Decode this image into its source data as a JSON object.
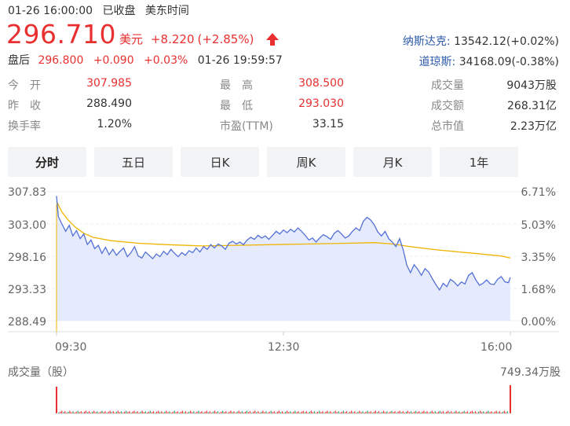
{
  "header": {
    "date_time": "01-26 16:00:00",
    "market_status": "已收盘",
    "timezone": "美东时间"
  },
  "quote": {
    "price": "296.710",
    "currency": "美元",
    "change": "+8.220",
    "change_pct": "(+2.85%)",
    "direction": "up"
  },
  "after_hours": {
    "label": "盘后",
    "price": "296.800",
    "change": "+0.090",
    "change_pct": "+0.03%",
    "time": "01-26 19:59:57"
  },
  "indices": [
    {
      "name": "纳斯达克:",
      "value": "13542.12(+0.02%)"
    },
    {
      "name": "道琼斯:",
      "value": "34168.09(-0.38%)"
    }
  ],
  "stats": {
    "open": {
      "label": "今　开",
      "value": "307.985"
    },
    "high": {
      "label": "最　高",
      "value": "308.500"
    },
    "volume": {
      "label": "成交量",
      "value": "9043万股"
    },
    "prev_close": {
      "label": "昨　收",
      "value": "288.490"
    },
    "low": {
      "label": "最　低",
      "value": "293.030"
    },
    "turnover": {
      "label": "成交额",
      "value": "268.31亿"
    },
    "turnover_rate": {
      "label": "换手率",
      "value": "1.20%"
    },
    "pe": {
      "label": "市盈(TTM)",
      "value": "33.15"
    },
    "market_cap": {
      "label": "总市值",
      "value": "2.23万亿"
    }
  },
  "tabs": [
    {
      "label": "分时",
      "active": true
    },
    {
      "label": "五日",
      "active": false
    },
    {
      "label": "日K",
      "active": false
    },
    {
      "label": "周K",
      "active": false
    },
    {
      "label": "月K",
      "active": false
    },
    {
      "label": "1年",
      "active": false
    }
  ],
  "colors": {
    "up": "#e93030",
    "index_name": "#2d5aa8",
    "price_line": "#5470d6",
    "avg_line": "#f0b400",
    "area_fill": "#dfe6fb"
  },
  "chart_data": {
    "type": "line",
    "y_left_ticks": [
      "307.83",
      "303.00",
      "298.16",
      "293.33",
      "288.49"
    ],
    "y_right_ticks": [
      "6.71%",
      "5.03%",
      "3.35%",
      "1.68%",
      "0.00%"
    ],
    "x_ticks": [
      "09:30",
      "12:30",
      "16:00"
    ],
    "ylim": [
      288.49,
      307.83
    ],
    "series": [
      {
        "values": [
          [
            0,
            307.2
          ],
          [
            1,
            304.1
          ],
          [
            3,
            303.0
          ],
          [
            5,
            301.9
          ],
          [
            7,
            302.8
          ],
          [
            9,
            301.2
          ],
          [
            11,
            302.0
          ],
          [
            13,
            300.8
          ],
          [
            15,
            301.5
          ],
          [
            17,
            299.9
          ],
          [
            19,
            300.6
          ],
          [
            21,
            299.3
          ],
          [
            23,
            299.8
          ],
          [
            25,
            298.6
          ],
          [
            27,
            299.5
          ],
          [
            29,
            298.4
          ],
          [
            31,
            299.2
          ],
          [
            33,
            298.3
          ],
          [
            35,
            298.9
          ],
          [
            37,
            299.4
          ],
          [
            39,
            298.1
          ],
          [
            41,
            298.7
          ],
          [
            43,
            299.6
          ],
          [
            45,
            298.2
          ],
          [
            47,
            297.9
          ],
          [
            49,
            298.8
          ],
          [
            51,
            298.3
          ],
          [
            53,
            297.8
          ],
          [
            55,
            298.5
          ],
          [
            57,
            298.1
          ],
          [
            59,
            298.9
          ],
          [
            61,
            298.4
          ],
          [
            63,
            299.2
          ],
          [
            65,
            298.6
          ],
          [
            67,
            298.1
          ],
          [
            69,
            298.7
          ],
          [
            71,
            298.3
          ],
          [
            73,
            299.0
          ],
          [
            75,
            298.7
          ],
          [
            77,
            299.4
          ],
          [
            79,
            298.8
          ],
          [
            81,
            299.6
          ],
          [
            83,
            299.2
          ],
          [
            85,
            299.9
          ],
          [
            87,
            299.4
          ],
          [
            89,
            300.0
          ],
          [
            91,
            299.7
          ],
          [
            93,
            299.2
          ],
          [
            95,
            300.1
          ],
          [
            97,
            300.4
          ],
          [
            99,
            300.0
          ],
          [
            101,
            300.3
          ],
          [
            103,
            299.9
          ],
          [
            105,
            300.6
          ],
          [
            107,
            301.0
          ],
          [
            109,
            300.7
          ],
          [
            111,
            301.3
          ],
          [
            113,
            300.9
          ],
          [
            115,
            301.2
          ],
          [
            117,
            300.7
          ],
          [
            119,
            301.3
          ],
          [
            121,
            301.9
          ],
          [
            123,
            301.5
          ],
          [
            125,
            302.1
          ],
          [
            127,
            301.7
          ],
          [
            129,
            302.2
          ],
          [
            131,
            301.8
          ],
          [
            133,
            302.4
          ],
          [
            135,
            301.9
          ],
          [
            137,
            301.3
          ],
          [
            139,
            300.6
          ],
          [
            141,
            300.9
          ],
          [
            143,
            300.3
          ],
          [
            145,
            300.9
          ],
          [
            147,
            301.4
          ],
          [
            149,
            301.1
          ],
          [
            151,
            300.7
          ],
          [
            153,
            301.6
          ],
          [
            155,
            302.0
          ],
          [
            157,
            301.5
          ],
          [
            159,
            300.9
          ],
          [
            161,
            301.2
          ],
          [
            163,
            301.9
          ],
          [
            165,
            302.4
          ],
          [
            167,
            302.0
          ],
          [
            169,
            303.4
          ],
          [
            171,
            304.0
          ],
          [
            173,
            303.6
          ],
          [
            175,
            302.9
          ],
          [
            177,
            301.8
          ],
          [
            179,
            301.2
          ],
          [
            181,
            301.9
          ],
          [
            183,
            300.8
          ],
          [
            185,
            300.3
          ],
          [
            187,
            299.6
          ],
          [
            189,
            300.8
          ],
          [
            191,
            299.1
          ],
          [
            193,
            296.8
          ],
          [
            195,
            295.7
          ],
          [
            197,
            296.9
          ],
          [
            199,
            296.2
          ],
          [
            201,
            295.3
          ],
          [
            203,
            296.3
          ],
          [
            205,
            295.8
          ],
          [
            207,
            294.8
          ],
          [
            209,
            293.9
          ],
          [
            211,
            293.1
          ],
          [
            213,
            294.1
          ],
          [
            215,
            293.6
          ],
          [
            217,
            294.7
          ],
          [
            219,
            294.3
          ],
          [
            221,
            293.7
          ],
          [
            223,
            294.3
          ],
          [
            225,
            294.0
          ],
          [
            227,
            295.3
          ],
          [
            229,
            295.7
          ],
          [
            231,
            294.6
          ],
          [
            233,
            293.8
          ],
          [
            235,
            294.1
          ],
          [
            237,
            294.6
          ],
          [
            239,
            294.0
          ],
          [
            241,
            293.9
          ],
          [
            243,
            294.7
          ],
          [
            245,
            295.1
          ],
          [
            247,
            294.3
          ],
          [
            249,
            294.2
          ],
          [
            250,
            295.0
          ]
        ]
      },
      {
        "values": [
          [
            0,
            306.4
          ],
          [
            3,
            304.8
          ],
          [
            6,
            303.7
          ],
          [
            10,
            302.6
          ],
          [
            15,
            301.6
          ],
          [
            20,
            301.0
          ],
          [
            30,
            300.5
          ],
          [
            45,
            300.1
          ],
          [
            60,
            299.9
          ],
          [
            80,
            299.7
          ],
          [
            100,
            299.8
          ],
          [
            120,
            299.9
          ],
          [
            140,
            300.0
          ],
          [
            160,
            300.1
          ],
          [
            175,
            300.2
          ],
          [
            185,
            300.0
          ],
          [
            195,
            299.6
          ],
          [
            210,
            299.1
          ],
          [
            230,
            298.6
          ],
          [
            245,
            298.2
          ],
          [
            250,
            297.9
          ]
        ]
      }
    ],
    "volume_max_label": "749.34万股",
    "volume_label": "成交量（股）"
  }
}
